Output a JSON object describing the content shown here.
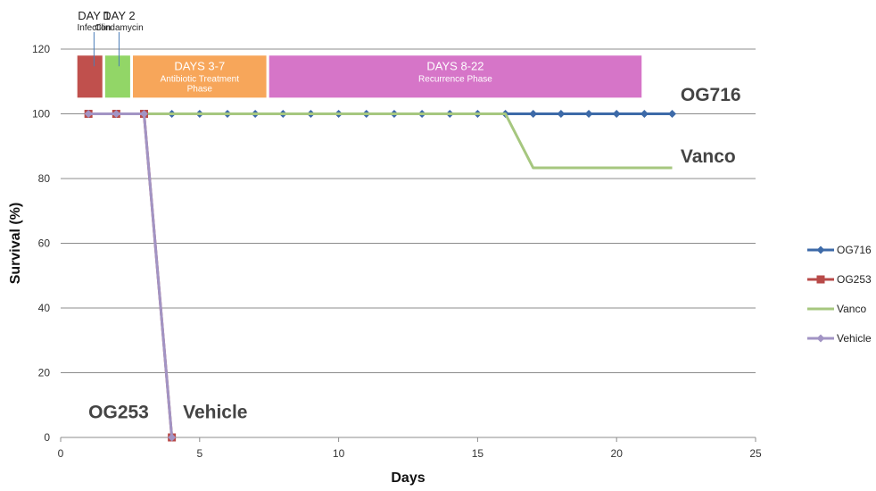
{
  "chart_data": {
    "type": "line",
    "xlabel": "Days",
    "ylabel": "Survival (%)",
    "xlim": [
      0,
      25
    ],
    "ylim": [
      0,
      120
    ],
    "xticks": [
      0,
      5,
      10,
      15,
      20,
      25
    ],
    "yticks": [
      0,
      20,
      40,
      60,
      80,
      100,
      120
    ],
    "grid": "horizontal",
    "legend_position": "right",
    "series": [
      {
        "name": "OG716",
        "color": "#3d6aa8",
        "marker": "diamond",
        "x": [
          1,
          2,
          3,
          4,
          5,
          6,
          7,
          8,
          9,
          10,
          11,
          12,
          13,
          14,
          15,
          16,
          17,
          18,
          19,
          20,
          21,
          22
        ],
        "y": [
          100,
          100,
          100,
          100,
          100,
          100,
          100,
          100,
          100,
          100,
          100,
          100,
          100,
          100,
          100,
          100,
          100,
          100,
          100,
          100,
          100,
          100
        ]
      },
      {
        "name": "OG253",
        "color": "#b84a48",
        "marker": "square",
        "x": [
          1,
          2,
          3,
          4
        ],
        "y": [
          100,
          100,
          100,
          0
        ]
      },
      {
        "name": "Vanco",
        "color": "#a6c77f",
        "marker": "none",
        "x": [
          1,
          2,
          3,
          4,
          5,
          6,
          7,
          8,
          9,
          10,
          11,
          12,
          13,
          14,
          15,
          16,
          17,
          18,
          19,
          20,
          21,
          22
        ],
        "y": [
          100,
          100,
          100,
          100,
          100,
          100,
          100,
          100,
          100,
          100,
          100,
          100,
          100,
          100,
          100,
          100,
          83.3,
          83.3,
          83.3,
          83.3,
          83.3,
          83.3
        ]
      },
      {
        "name": "Vehicle",
        "color": "#a294c4",
        "marker": "diamond",
        "x": [
          1,
          2,
          3,
          4
        ],
        "y": [
          100,
          100,
          100,
          0
        ]
      }
    ],
    "phases": [
      {
        "title": "",
        "subtitle": "",
        "x_start": 0.6,
        "x_end": 1.5,
        "color": "#c0504d"
      },
      {
        "title": "",
        "subtitle": "",
        "x_start": 1.6,
        "x_end": 2.5,
        "color": "#92d667"
      },
      {
        "title": "DAYS 3-7",
        "subtitle": "Antibiotic Treatment Phase",
        "x_start": 2.6,
        "x_end": 7.4,
        "color": "#f7a65a"
      },
      {
        "title": "DAYS 8-22",
        "subtitle": "Recurrence Phase",
        "x_start": 7.5,
        "x_end": 20.9,
        "color": "#d675c8"
      }
    ],
    "phase_range_y": [
      105,
      118
    ],
    "day_labels": [
      {
        "title": "DAY 1",
        "subtitle": "Infection",
        "pointer_x": 1.2
      },
      {
        "title": "DAY 2",
        "subtitle": "Clindamycin",
        "pointer_x": 2.1
      }
    ],
    "annotations": [
      {
        "text": "OG716",
        "x": 22.3,
        "y": 104
      },
      {
        "text": "Vanco",
        "x": 22.3,
        "y": 85
      },
      {
        "text": "OG253",
        "x": 1,
        "y": 6
      },
      {
        "text": "Vehicle",
        "x": 4.4,
        "y": 6
      }
    ]
  }
}
